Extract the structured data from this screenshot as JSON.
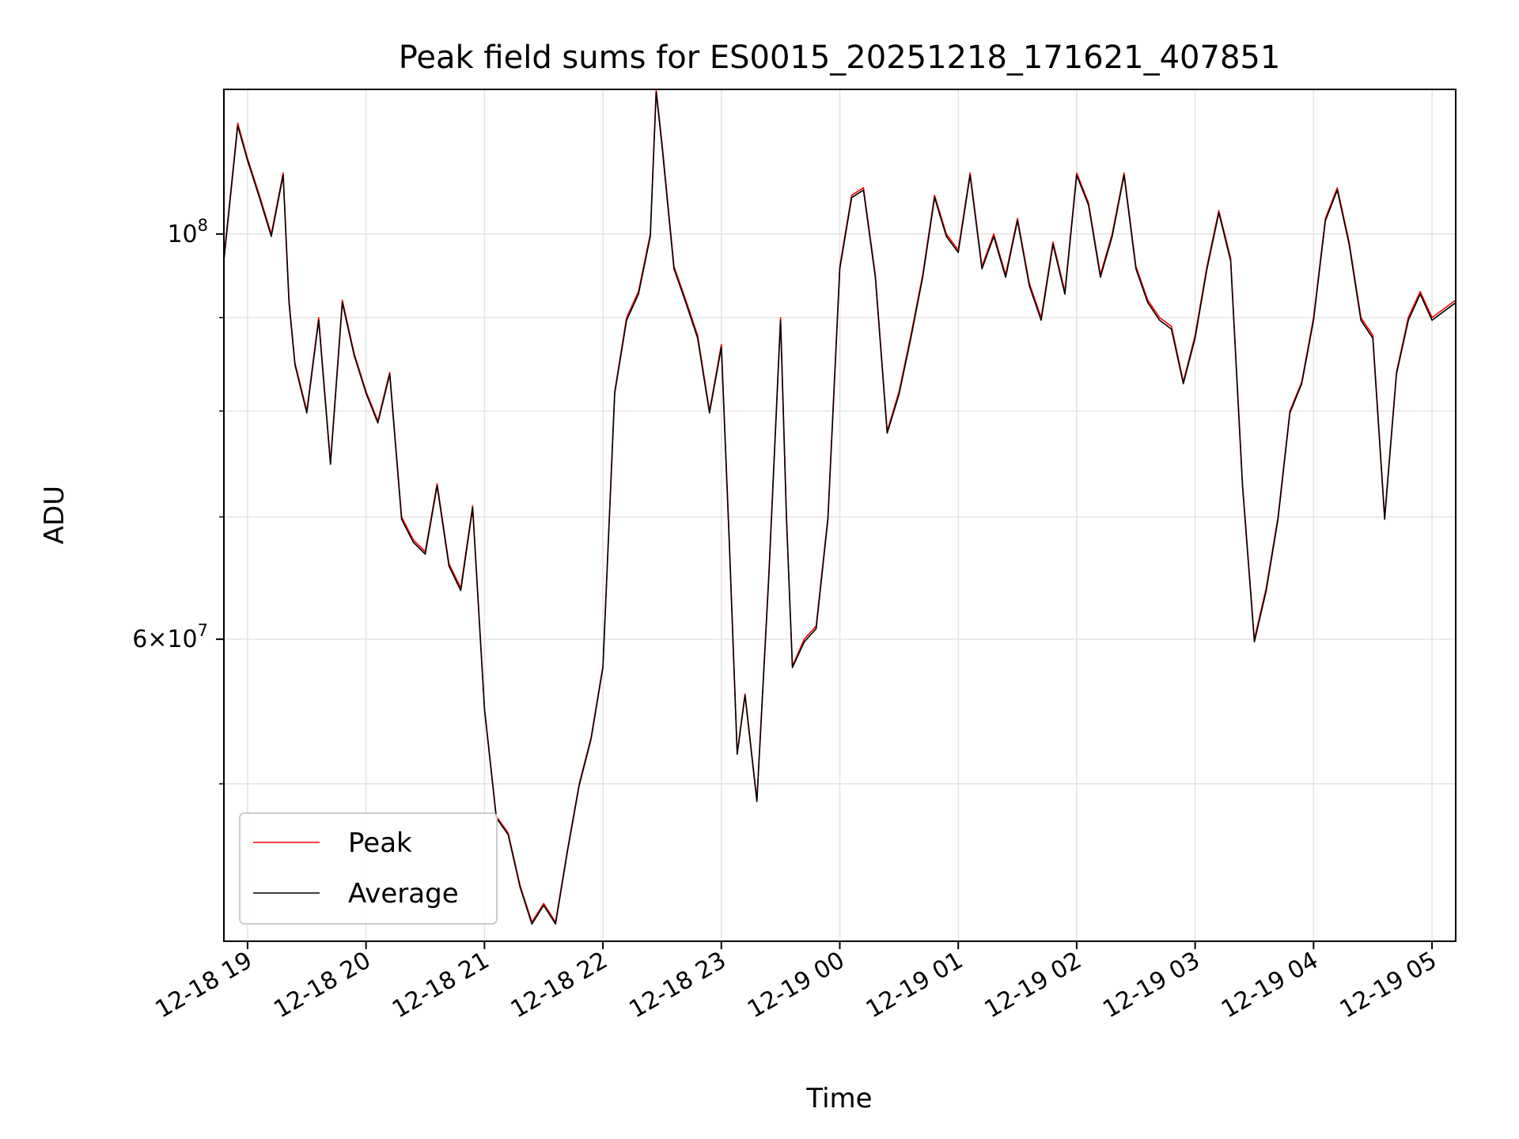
{
  "chart_data": {
    "type": "line",
    "title": "Peak field sums for ES0015_20251218_171621_407851",
    "xlabel": "Time",
    "ylabel": "ADU",
    "yscale": "log",
    "xlim": [
      "2025-12-18 18:48",
      "2025-12-19 05:12"
    ],
    "ylim": [
      41000000,
      120000000
    ],
    "x_tick_labels": [
      "12-18 19",
      "12-18 20",
      "12-18 21",
      "12-18 22",
      "12-18 23",
      "12-19 00",
      "12-19 01",
      "12-19 02",
      "12-19 03",
      "12-19 04",
      "12-19 05"
    ],
    "x_tick_values": [
      "2025-12-18 19:00",
      "2025-12-18 20:00",
      "2025-12-18 21:00",
      "2025-12-18 22:00",
      "2025-12-18 23:00",
      "2025-12-19 00:00",
      "2025-12-19 01:00",
      "2025-12-19 02:00",
      "2025-12-19 03:00",
      "2025-12-19 04:00",
      "2025-12-19 05:00"
    ],
    "y_tick_labels": [
      {
        "value": 100000000,
        "mantissa": "",
        "exponent": "8"
      },
      {
        "value": 60000000,
        "mantissa": "6",
        "exponent": "7"
      }
    ],
    "y_minor_ticks": [
      50000000,
      70000000,
      80000000,
      90000000
    ],
    "grid": true,
    "legend_position": "lower-left",
    "x": [
      "2025-12-18 18:48",
      "2025-12-18 18:55",
      "2025-12-18 19:00",
      "2025-12-18 19:06",
      "2025-12-18 19:12",
      "2025-12-18 19:18",
      "2025-12-18 19:21",
      "2025-12-18 19:24",
      "2025-12-18 19:30",
      "2025-12-18 19:36",
      "2025-12-18 19:42",
      "2025-12-18 19:48",
      "2025-12-18 19:54",
      "2025-12-18 20:00",
      "2025-12-18 20:06",
      "2025-12-18 20:12",
      "2025-12-18 20:18",
      "2025-12-18 20:24",
      "2025-12-18 20:30",
      "2025-12-18 20:36",
      "2025-12-18 20:42",
      "2025-12-18 20:48",
      "2025-12-18 20:54",
      "2025-12-18 21:00",
      "2025-12-18 21:06",
      "2025-12-18 21:12",
      "2025-12-18 21:18",
      "2025-12-18 21:24",
      "2025-12-18 21:30",
      "2025-12-18 21:36",
      "2025-12-18 21:42",
      "2025-12-18 21:48",
      "2025-12-18 21:54",
      "2025-12-18 22:00",
      "2025-12-18 22:06",
      "2025-12-18 22:12",
      "2025-12-18 22:18",
      "2025-12-18 22:24",
      "2025-12-18 22:27",
      "2025-12-18 22:30",
      "2025-12-18 22:36",
      "2025-12-18 22:42",
      "2025-12-18 22:48",
      "2025-12-18 22:54",
      "2025-12-18 23:00",
      "2025-12-18 23:04",
      "2025-12-18 23:08",
      "2025-12-18 23:12",
      "2025-12-18 23:18",
      "2025-12-18 23:24",
      "2025-12-18 23:30",
      "2025-12-18 23:33",
      "2025-12-18 23:36",
      "2025-12-18 23:42",
      "2025-12-18 23:48",
      "2025-12-18 23:54",
      "2025-12-19 00:00",
      "2025-12-19 00:06",
      "2025-12-19 00:12",
      "2025-12-19 00:18",
      "2025-12-19 00:24",
      "2025-12-19 00:30",
      "2025-12-19 00:36",
      "2025-12-19 00:42",
      "2025-12-19 00:48",
      "2025-12-19 00:54",
      "2025-12-19 01:00",
      "2025-12-19 01:06",
      "2025-12-19 01:12",
      "2025-12-19 01:18",
      "2025-12-19 01:24",
      "2025-12-19 01:30",
      "2025-12-19 01:36",
      "2025-12-19 01:42",
      "2025-12-19 01:48",
      "2025-12-19 01:54",
      "2025-12-19 02:00",
      "2025-12-19 02:06",
      "2025-12-19 02:12",
      "2025-12-19 02:18",
      "2025-12-19 02:24",
      "2025-12-19 02:30",
      "2025-12-19 02:36",
      "2025-12-19 02:42",
      "2025-12-19 02:48",
      "2025-12-19 02:54",
      "2025-12-19 03:00",
      "2025-12-19 03:06",
      "2025-12-19 03:12",
      "2025-12-19 03:18",
      "2025-12-19 03:24",
      "2025-12-19 03:30",
      "2025-12-19 03:36",
      "2025-12-19 03:42",
      "2025-12-19 03:48",
      "2025-12-19 03:54",
      "2025-12-19 04:00",
      "2025-12-19 04:06",
      "2025-12-19 04:12",
      "2025-12-19 04:18",
      "2025-12-19 04:24",
      "2025-12-19 04:30",
      "2025-12-19 04:36",
      "2025-12-19 04:42",
      "2025-12-19 04:48",
      "2025-12-19 04:54",
      "2025-12-19 05:00",
      "2025-12-19 05:06",
      "2025-12-19 05:12"
    ],
    "series": [
      {
        "name": "Peak",
        "color": "#ff0000",
        "values": [
          97000000,
          115000000,
          110000000,
          105000000,
          100000000,
          108000000,
          92000000,
          85000000,
          80000000,
          90000000,
          75000000,
          92000000,
          86000000,
          82000000,
          79000000,
          84000000,
          70000000,
          68000000,
          67000000,
          73000000,
          66000000,
          64000000,
          71000000,
          55000000,
          48000000,
          47000000,
          44000000,
          42000000,
          43000000,
          42000000,
          46000000,
          50000000,
          53000000,
          58000000,
          82000000,
          90000000,
          93000000,
          100000000,
          120000000,
          112000000,
          96000000,
          92000000,
          88000000,
          80000000,
          87000000,
          68000000,
          52000000,
          56000000,
          49000000,
          65000000,
          90000000,
          70000000,
          58000000,
          60000000,
          61000000,
          70000000,
          96000000,
          105000000,
          106000000,
          95000000,
          78000000,
          82000000,
          88000000,
          95000000,
          105000000,
          100000000,
          98000000,
          108000000,
          96000000,
          100000000,
          95000000,
          102000000,
          94000000,
          90000000,
          99000000,
          93000000,
          108000000,
          104000000,
          95000000,
          100000000,
          108000000,
          96000000,
          92000000,
          90000000,
          89000000,
          83000000,
          88000000,
          96000000,
          103000000,
          97000000,
          73000000,
          60000000,
          64000000,
          70000000,
          80000000,
          83000000,
          90000000,
          102000000,
          106000000,
          99000000,
          90000000,
          88000000,
          70000000,
          84000000,
          90000000,
          93000000,
          90000000,
          91000000,
          92000000
        ]
      },
      {
        "name": "Average",
        "color": "#000000",
        "values": [
          96700000,
          114600000,
          109700000,
          104700000,
          99700000,
          107700000,
          91700000,
          84800000,
          79800000,
          89700000,
          74800000,
          91700000,
          85800000,
          81800000,
          78800000,
          83800000,
          69800000,
          67800000,
          66800000,
          72800000,
          65800000,
          63800000,
          70800000,
          54900000,
          47900000,
          46900000,
          43900000,
          41900000,
          42900000,
          41900000,
          45900000,
          49900000,
          52900000,
          57900000,
          81800000,
          89700000,
          92700000,
          99700000,
          119600000,
          111600000,
          95700000,
          91700000,
          87700000,
          79800000,
          86700000,
          67800000,
          51900000,
          55900000,
          48900000,
          64800000,
          89700000,
          69800000,
          57900000,
          59800000,
          60800000,
          69800000,
          95700000,
          104700000,
          105700000,
          94700000,
          77800000,
          81700000,
          87700000,
          94700000,
          104700000,
          99700000,
          97700000,
          107700000,
          95700000,
          99700000,
          94700000,
          101700000,
          93700000,
          89700000,
          98700000,
          92700000,
          107700000,
          103700000,
          94700000,
          99700000,
          107700000,
          95700000,
          91700000,
          89700000,
          88700000,
          82800000,
          87700000,
          95700000,
          102700000,
          96700000,
          72800000,
          59800000,
          63800000,
          69800000,
          79800000,
          82800000,
          89700000,
          101700000,
          105700000,
          98700000,
          89700000,
          87700000,
          69800000,
          83800000,
          89700000,
          92700000,
          89700000,
          90700000,
          91700000
        ]
      }
    ]
  }
}
